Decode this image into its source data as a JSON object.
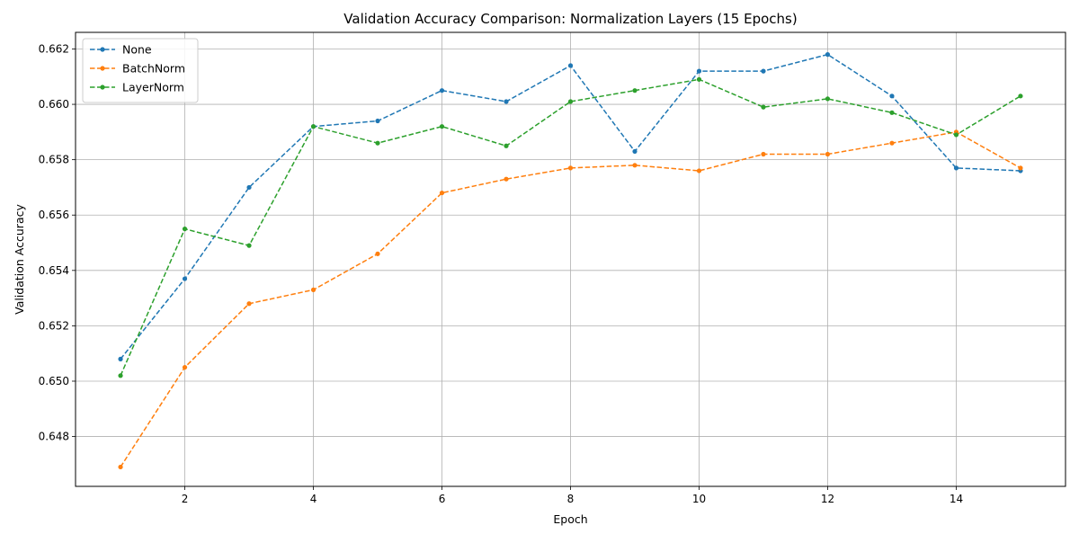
{
  "chart_data": {
    "type": "line",
    "title": "Validation Accuracy Comparison: Normalization Layers (15 Epochs)",
    "xlabel": "Epoch",
    "ylabel": "Validation Accuracy",
    "xlim": [
      0.3,
      15.7
    ],
    "ylim": [
      0.6462,
      0.6626
    ],
    "xticks": [
      2,
      4,
      6,
      8,
      10,
      12,
      14
    ],
    "yticks": [
      0.648,
      0.65,
      0.652,
      0.654,
      0.656,
      0.658,
      0.66,
      0.662
    ],
    "grid": true,
    "legend_position": "top-left",
    "x": [
      1,
      2,
      3,
      4,
      5,
      6,
      7,
      8,
      9,
      10,
      11,
      12,
      13,
      14,
      15
    ],
    "series": [
      {
        "name": "None",
        "color": "#1f77b4",
        "values": [
          0.6508,
          0.6537,
          0.657,
          0.6592,
          0.6594,
          0.6605,
          0.6601,
          0.6614,
          0.6583,
          0.6612,
          0.6612,
          0.6618,
          0.6603,
          0.6577,
          0.6576
        ]
      },
      {
        "name": "BatchNorm",
        "color": "#ff7f0e",
        "values": [
          0.6469,
          0.6505,
          0.6528,
          0.6533,
          0.6546,
          0.6568,
          0.6573,
          0.6577,
          0.6578,
          0.6576,
          0.6582,
          0.6582,
          0.6586,
          0.659,
          0.6577
        ]
      },
      {
        "name": "LayerNorm",
        "color": "#2ca02c",
        "values": [
          0.6502,
          0.6555,
          0.6549,
          0.6592,
          0.6586,
          0.6592,
          0.6585,
          0.6601,
          0.6605,
          0.6609,
          0.6599,
          0.6602,
          0.6597,
          0.6589,
          0.6603
        ]
      }
    ]
  }
}
